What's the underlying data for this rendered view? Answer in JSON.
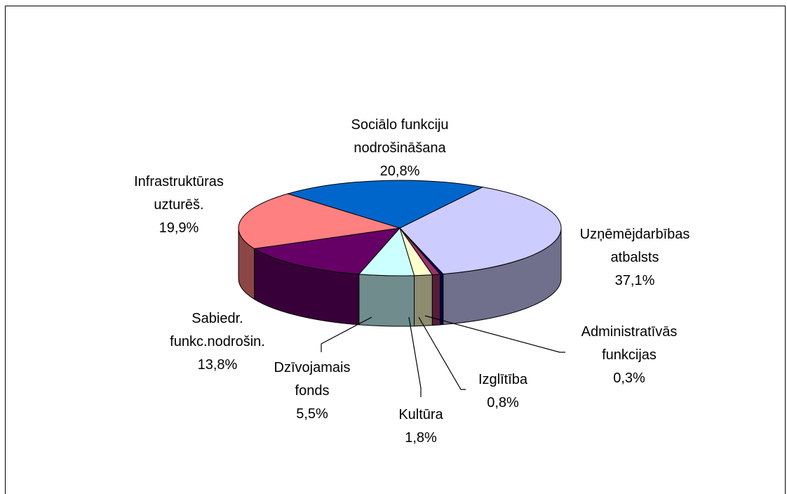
{
  "chart_data": {
    "type": "pie3d",
    "categories": [
      "Sociālo funkciju\nnodrošināšana",
      "Uzņēmējdarbības\natbalsts",
      "Administratīvās\nfunkcijas",
      "Izglītība",
      "Kultūra",
      "Dzīvojamais\nfonds",
      "Sabiedr.\nfunkc.nodrošin.",
      "Infrastruktūras\nuzturēš."
    ],
    "values": [
      20.8,
      37.1,
      0.3,
      0.8,
      1.8,
      5.5,
      13.8,
      19.9
    ],
    "value_labels": [
      "20,8%",
      "37,1%",
      "0,3%",
      "0,8%",
      "1,8%",
      "5,5%",
      "13,8%",
      "19,9%"
    ],
    "colors": [
      "#0066cc",
      "#ccccff",
      "#000080",
      "#993366",
      "#ffffcc",
      "#ccffff",
      "#660066",
      "#ff8080"
    ]
  }
}
